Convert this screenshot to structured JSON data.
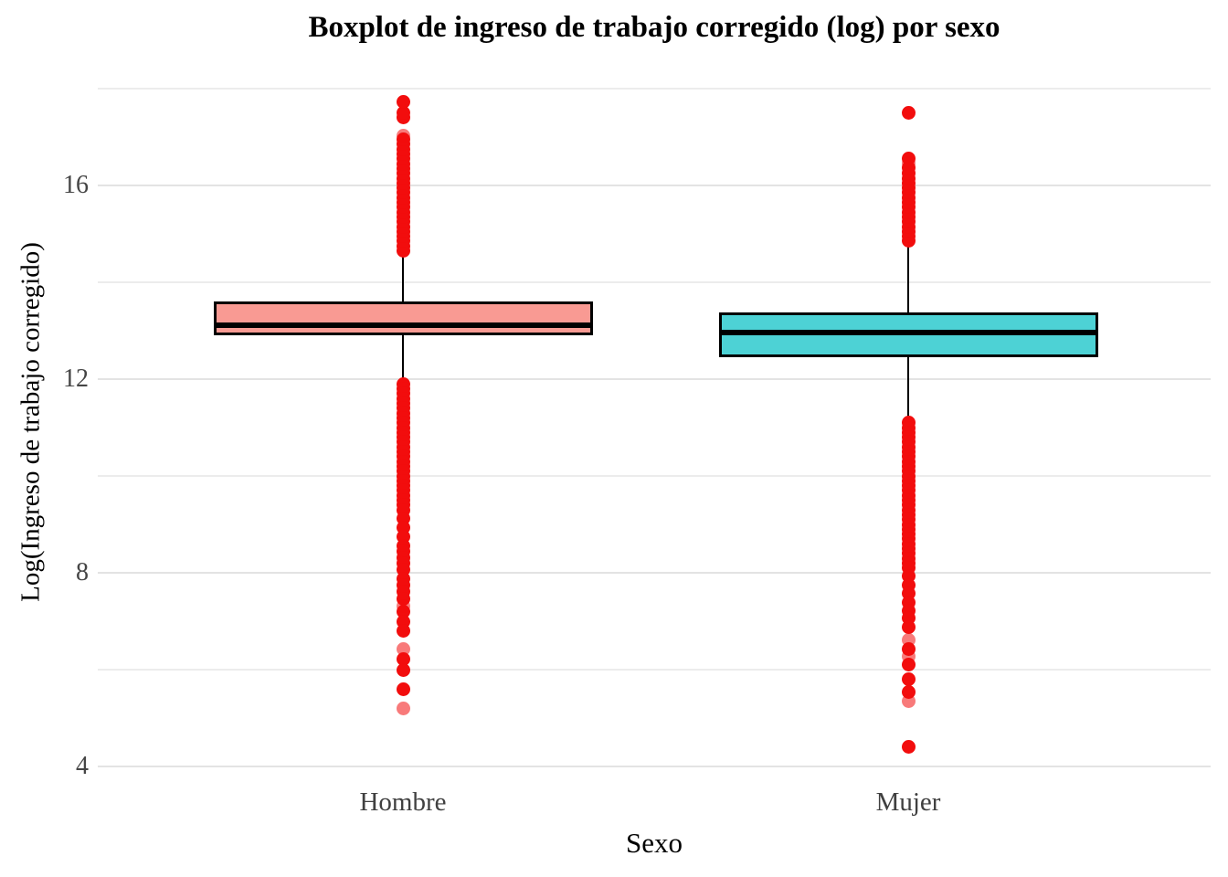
{
  "chart_data": {
    "type": "boxplot",
    "title": "Boxplot de ingreso de trabajo corregido (log) por sexo",
    "xlabel": "Sexo",
    "ylabel": "Log(Ingreso de trabajo corregido)",
    "ylim": [
      3.7,
      18.2
    ],
    "yticks_major": [
      4,
      8,
      12,
      16
    ],
    "yticks_minor": [
      6,
      10,
      14,
      18
    ],
    "grid": "major and minor horizontal gridlines, light gray on white, no axis lines or ticks",
    "legend": "none",
    "categories": [
      "Hombre",
      "Mujer"
    ],
    "series": [
      {
        "name": "Hombre",
        "fill": "#F99A93",
        "whisker_low": 11.9,
        "q1": 12.9,
        "median": 13.12,
        "q3": 13.6,
        "whisker_high": 14.73,
        "outliers_high": [
          14.65,
          14.75,
          14.85,
          14.95,
          15.05,
          15.15,
          15.25,
          15.35,
          15.45,
          15.55,
          15.65,
          15.75,
          15.85,
          15.95,
          16.05,
          16.15,
          16.25,
          16.35,
          16.45,
          16.55,
          16.65,
          16.75,
          16.85,
          16.95,
          17.4,
          17.5,
          17.73
        ],
        "outliers_high_faded": [
          17.03
        ],
        "outliers_low": [
          11.9,
          11.8,
          11.7,
          11.6,
          11.5,
          11.4,
          11.3,
          11.2,
          11.1,
          11.0,
          10.9,
          10.8,
          10.7,
          10.6,
          10.5,
          10.4,
          10.3,
          10.2,
          10.1,
          10.0,
          9.9,
          9.8,
          9.7,
          9.6,
          9.5,
          9.4,
          9.3,
          9.13,
          8.94,
          8.75,
          8.56,
          8.45,
          8.32,
          8.19,
          8.07,
          7.88,
          7.75,
          7.62,
          7.47,
          7.19,
          7.0,
          6.81,
          6.21,
          6.0,
          5.6
        ],
        "outliers_low_faded": [
          7.32,
          6.43,
          5.2
        ]
      },
      {
        "name": "Mujer",
        "fill": "#4DD2D5",
        "whisker_low": 11.1,
        "q1": 12.45,
        "median": 12.97,
        "q3": 13.37,
        "whisker_high": 14.8,
        "outliers_high": [
          14.85,
          14.95,
          15.05,
          15.15,
          15.25,
          15.35,
          15.45,
          15.55,
          15.65,
          15.75,
          15.85,
          15.95,
          16.05,
          16.15,
          16.26,
          16.37,
          16.56,
          17.5
        ],
        "outliers_high_faded": [
          16.47
        ],
        "outliers_low": [
          11.1,
          11.0,
          10.9,
          10.8,
          10.7,
          10.6,
          10.5,
          10.4,
          10.3,
          10.2,
          10.1,
          10.0,
          9.9,
          9.8,
          9.7,
          9.6,
          9.5,
          9.4,
          9.3,
          9.2,
          9.1,
          9.0,
          8.9,
          8.8,
          8.7,
          8.6,
          8.5,
          8.4,
          8.3,
          8.2,
          8.1,
          7.94,
          7.75,
          7.57,
          7.38,
          7.22,
          7.06,
          6.87,
          6.43,
          6.11,
          5.81,
          5.53,
          4.41
        ],
        "outliers_low_faded": [
          6.62,
          6.28,
          5.34
        ]
      }
    ],
    "colors": {
      "outlier": "#F20D0D",
      "grid_major": "#E3E3E3",
      "grid_minor": "#ECECEC",
      "axis_text": "#454545",
      "box_border": "#000000"
    }
  }
}
